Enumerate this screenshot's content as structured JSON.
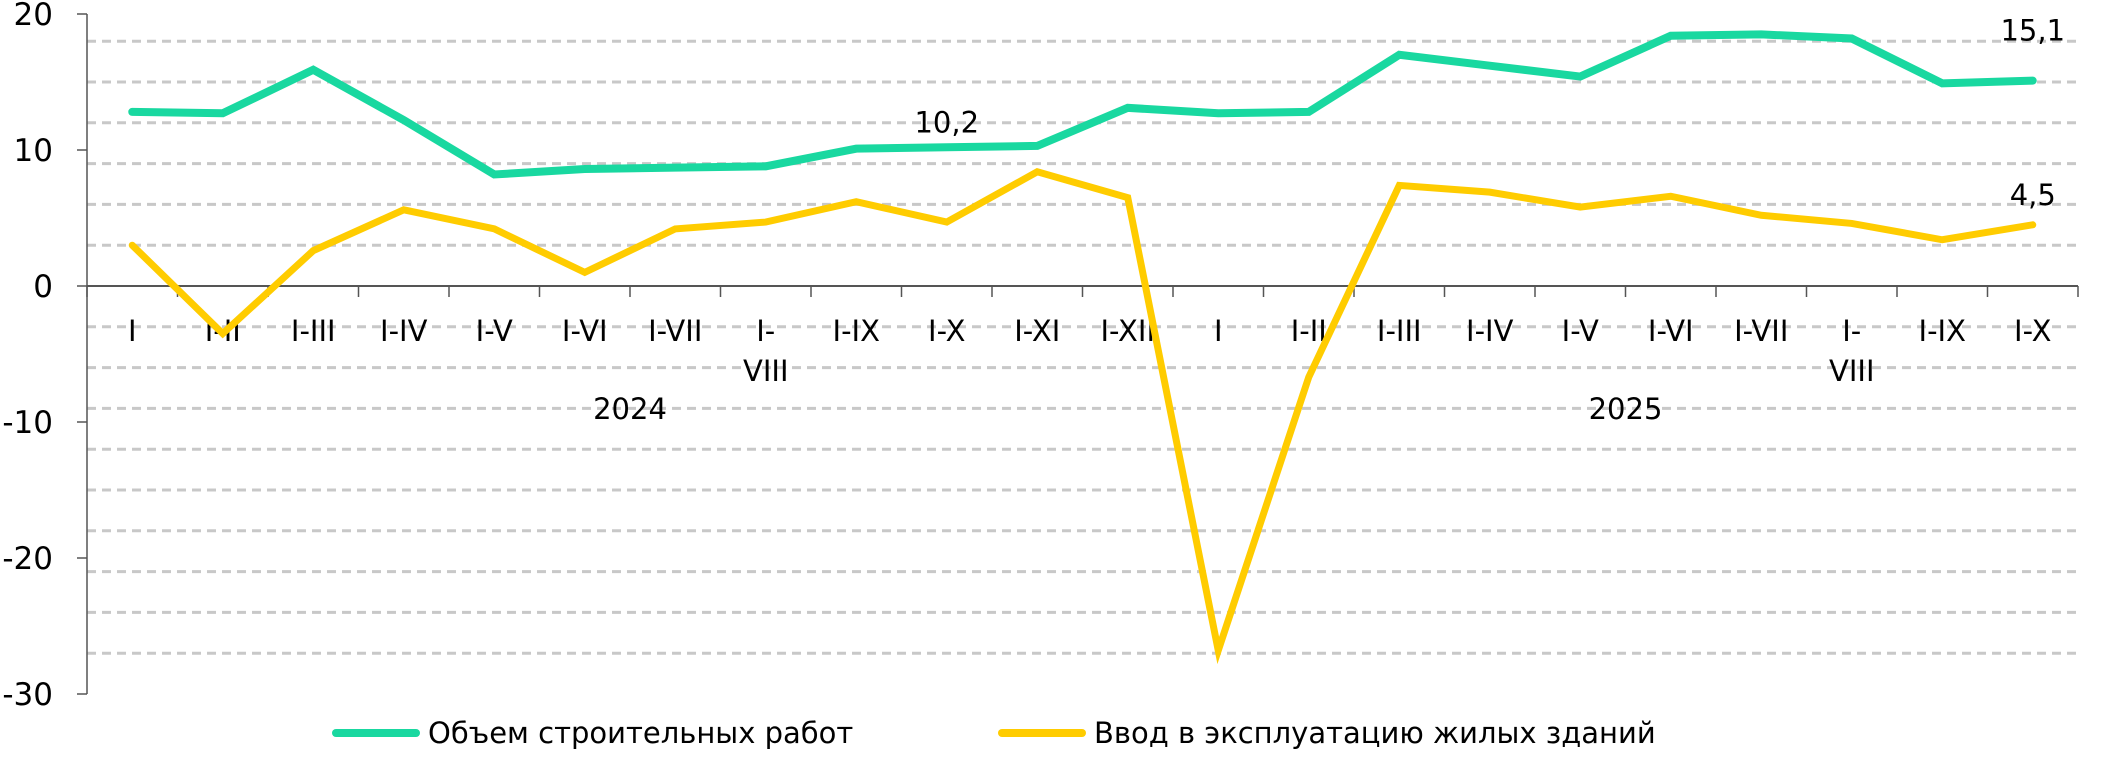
{
  "chart_data": {
    "type": "line",
    "categories": [
      "I",
      "I-II",
      "I-III",
      "I-IV",
      "I-V",
      "I-VI",
      "I-VII",
      "I-VIII",
      "I-IX",
      "I-X",
      "I-XI",
      "I-XII",
      "I",
      "I-II",
      "I-III",
      "I-IV",
      "I-V",
      "I-VI",
      "I-VII",
      "I-VIII",
      "I-IX",
      "I-X"
    ],
    "category_labels": [
      "I",
      "I-II",
      "I-III",
      "I-IV",
      "I-V",
      "I-VI",
      "I-VII",
      "I-\nVIII",
      "I-IX",
      "I-X",
      "I-XI",
      "I-XII",
      "I",
      "I-II",
      "I-III",
      "I-IV",
      "I-V",
      "I-VI",
      "I-VII",
      "I-\nVIII",
      "I-IX",
      "I-X"
    ],
    "groups": [
      {
        "label": "2024",
        "from": 0,
        "to": 11
      },
      {
        "label": "2025",
        "from": 12,
        "to": 21
      }
    ],
    "series": [
      {
        "name": "Объем строительных работ",
        "color": "#19d8a0",
        "values": [
          12.8,
          12.7,
          15.9,
          12.2,
          8.2,
          8.6,
          8.7,
          8.8,
          10.1,
          10.2,
          10.3,
          13.1,
          12.7,
          12.8,
          17.0,
          16.2,
          15.4,
          18.4,
          18.5,
          18.2,
          14.9,
          15.1
        ]
      },
      {
        "name": "Ввод в эксплуатацию жилых зданий",
        "color": "#ffcc00",
        "values": [
          3.0,
          -3.5,
          2.6,
          5.6,
          4.2,
          1.0,
          4.2,
          4.7,
          6.2,
          4.7,
          8.4,
          6.5,
          -26.8,
          -6.7,
          7.4,
          6.9,
          5.8,
          6.6,
          5.2,
          4.6,
          3.4,
          4.5
        ]
      }
    ],
    "data_labels": [
      {
        "series": 0,
        "index": 9,
        "text": "10,2"
      },
      {
        "series": 0,
        "index": 21,
        "text": "15,1"
      },
      {
        "series": 1,
        "index": 21,
        "text": "4,5"
      }
    ],
    "yticks": [
      "20",
      "10",
      "0",
      "-10",
      "-20",
      "-30"
    ],
    "ylim": [
      -30,
      20
    ],
    "grid": "dashed horizontal every 3 units",
    "legend": "bottom",
    "title": "",
    "xlabel": "",
    "ylabel": ""
  }
}
